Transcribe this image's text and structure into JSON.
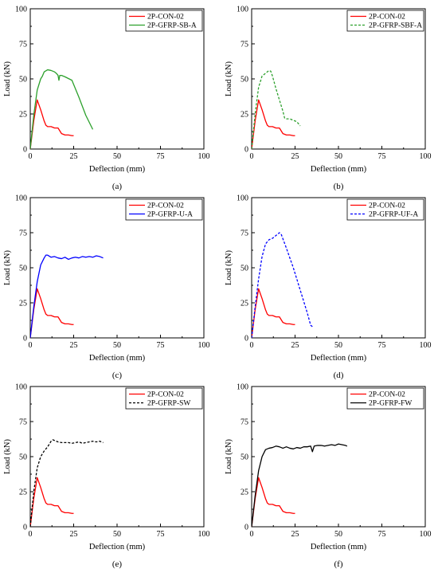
{
  "chart_data": [
    {
      "type": "line",
      "panel_label": "(a)",
      "xlabel": "Deflection (mm)",
      "ylabel": "Load (kN)",
      "xlim": [
        0,
        100
      ],
      "ylim": [
        0,
        100
      ],
      "xticks": [
        "0",
        "25",
        "50",
        "75",
        "100"
      ],
      "yticks": [
        "0",
        "25",
        "50",
        "75",
        "100"
      ],
      "legend_position": "top-right",
      "series": [
        {
          "name": "2P-CON-02",
          "color": "#ff0000",
          "dash": "solid",
          "x": [
            0,
            2,
            4,
            6,
            8,
            9,
            10,
            12,
            14,
            16,
            18,
            20,
            22,
            24,
            25
          ],
          "y": [
            0,
            20,
            35,
            28,
            20,
            17,
            16,
            16,
            15,
            15,
            11,
            10,
            10,
            9.5,
            9.5
          ]
        },
        {
          "name": "2P-GFRP-SB-A",
          "color": "#2ca02c",
          "dash": "solid",
          "x": [
            0,
            2,
            4,
            6,
            7,
            8,
            10,
            12,
            14,
            15,
            16,
            16.5,
            17,
            18,
            20,
            24,
            28,
            32,
            36
          ],
          "y": [
            0,
            24,
            42,
            50,
            52,
            55,
            56.5,
            56,
            55,
            54,
            52.5,
            49,
            52.5,
            52.5,
            51.5,
            49,
            37,
            24,
            14
          ]
        }
      ]
    },
    {
      "type": "line",
      "panel_label": "(b)",
      "xlabel": "Deflection (mm)",
      "ylabel": "Load (kN)",
      "xlim": [
        0,
        100
      ],
      "ylim": [
        0,
        100
      ],
      "xticks": [
        "0",
        "25",
        "50",
        "75",
        "100"
      ],
      "yticks": [
        "0",
        "25",
        "50",
        "75",
        "100"
      ],
      "legend_position": "top-right",
      "series": [
        {
          "name": "2P-CON-02",
          "color": "#ff0000",
          "dash": "solid",
          "x": [
            0,
            2,
            4,
            6,
            8,
            9,
            10,
            12,
            14,
            16,
            18,
            20,
            22,
            24,
            25
          ],
          "y": [
            0,
            20,
            35,
            28,
            20,
            17,
            16,
            16,
            15,
            15,
            11,
            10,
            10,
            9.5,
            9.5
          ]
        },
        {
          "name": "2P-GFRP-SBF-A",
          "color": "#2ca02c",
          "dash": "dashed",
          "x": [
            0,
            2,
            4,
            6,
            8,
            10,
            11,
            12,
            14,
            16,
            18,
            19,
            20,
            22,
            24,
            26,
            28
          ],
          "y": [
            0,
            25,
            44,
            52,
            54,
            56,
            55.5,
            52,
            43,
            35,
            27,
            22,
            21.5,
            21.5,
            20.5,
            19.5,
            16.5
          ]
        }
      ]
    },
    {
      "type": "line",
      "panel_label": "(c)",
      "xlabel": "Deflection (mm)",
      "ylabel": "Load (kN)",
      "xlim": [
        0,
        100
      ],
      "ylim": [
        0,
        100
      ],
      "xticks": [
        "0",
        "25",
        "50",
        "75",
        "100"
      ],
      "yticks": [
        "0",
        "25",
        "50",
        "75",
        "100"
      ],
      "legend_position": "top-right",
      "series": [
        {
          "name": "2P-CON-02",
          "color": "#ff0000",
          "dash": "solid",
          "x": [
            0,
            2,
            4,
            6,
            8,
            9,
            10,
            12,
            14,
            16,
            18,
            20,
            22,
            24,
            25
          ],
          "y": [
            0,
            20,
            35,
            28,
            20,
            17,
            16,
            16,
            15,
            15,
            11,
            10,
            10,
            9.5,
            9.5
          ]
        },
        {
          "name": "2P-GFRP-U-A",
          "color": "#0000ff",
          "dash": "solid",
          "x": [
            0,
            2,
            4,
            6,
            8,
            9,
            10,
            12,
            14,
            16,
            18,
            20,
            22,
            24,
            26,
            28,
            30,
            32,
            34,
            36,
            38,
            40,
            42
          ],
          "y": [
            0,
            22,
            40,
            52,
            57,
            59,
            59,
            57.5,
            58,
            57,
            56.5,
            57.5,
            56,
            57,
            57.5,
            57,
            58,
            57.5,
            58,
            57.5,
            58.5,
            58,
            57
          ]
        }
      ]
    },
    {
      "type": "line",
      "panel_label": "(d)",
      "xlabel": "Deflection (mm)",
      "ylabel": "Load (kN)",
      "xlim": [
        0,
        100
      ],
      "ylim": [
        0,
        100
      ],
      "xticks": [
        "0",
        "25",
        "50",
        "75",
        "100"
      ],
      "yticks": [
        "0",
        "25",
        "50",
        "75",
        "100"
      ],
      "legend_position": "top-right",
      "series": [
        {
          "name": "2P-CON-02",
          "color": "#ff0000",
          "dash": "solid",
          "x": [
            0,
            2,
            4,
            6,
            8,
            9,
            10,
            12,
            14,
            16,
            18,
            20,
            22,
            24,
            25
          ],
          "y": [
            0,
            20,
            35,
            28,
            20,
            17,
            16,
            16,
            15,
            15,
            11,
            10,
            10,
            9.5,
            9.5
          ]
        },
        {
          "name": "2P-GFRP-UF-A",
          "color": "#0000ff",
          "dash": "dashed",
          "x": [
            0,
            2,
            4,
            6,
            8,
            10,
            12,
            14,
            16,
            17,
            20,
            24,
            28,
            32,
            34,
            35
          ],
          "y": [
            0,
            22,
            42,
            58,
            67,
            70,
            71,
            73,
            75,
            74,
            64,
            50,
            34,
            18,
            9,
            8
          ]
        }
      ]
    },
    {
      "type": "line",
      "panel_label": "(e)",
      "xlabel": "Deflection (mm)",
      "ylabel": "Load (kN)",
      "xlim": [
        0,
        100
      ],
      "ylim": [
        0,
        100
      ],
      "xticks": [
        "0",
        "25",
        "50",
        "75",
        "100"
      ],
      "yticks": [
        "0",
        "25",
        "50",
        "75",
        "100"
      ],
      "legend_position": "top-right",
      "series": [
        {
          "name": "2P-CON-02",
          "color": "#ff0000",
          "dash": "solid",
          "x": [
            0,
            2,
            4,
            6,
            8,
            9,
            10,
            12,
            14,
            16,
            18,
            20,
            22,
            24,
            25
          ],
          "y": [
            0,
            20,
            35,
            28,
            20,
            17,
            16,
            16,
            15,
            15,
            11,
            10,
            10,
            9.5,
            9.5
          ]
        },
        {
          "name": "2P-GFRP-SW",
          "color": "#000000",
          "dash": "dashed",
          "x": [
            0,
            2,
            4,
            6,
            8,
            10,
            12,
            13,
            14,
            16,
            18,
            20,
            22,
            24,
            26,
            28,
            30,
            32,
            34,
            36,
            38,
            40,
            42
          ],
          "y": [
            0,
            25,
            42,
            50,
            54,
            57,
            61,
            62,
            61.5,
            60.5,
            60,
            60,
            60,
            59.5,
            60,
            60.5,
            59.5,
            60,
            60.5,
            61,
            60.5,
            61,
            60
          ]
        }
      ]
    },
    {
      "type": "line",
      "panel_label": "(f)",
      "xlabel": "Deflection (mm)",
      "ylabel": "Load (kN)",
      "xlim": [
        0,
        100
      ],
      "ylim": [
        0,
        100
      ],
      "xticks": [
        "0",
        "25",
        "50",
        "75",
        "100"
      ],
      "yticks": [
        "0",
        "25",
        "50",
        "75",
        "100"
      ],
      "legend_position": "top-right",
      "series": [
        {
          "name": "2P-CON-02",
          "color": "#ff0000",
          "dash": "solid",
          "x": [
            0,
            2,
            4,
            6,
            8,
            9,
            10,
            12,
            14,
            16,
            18,
            20,
            22,
            24,
            25
          ],
          "y": [
            0,
            20,
            35,
            28,
            20,
            17,
            16,
            16,
            15,
            15,
            11,
            10,
            10,
            9.5,
            9.5
          ]
        },
        {
          "name": "2P-GFRP-FW",
          "color": "#000000",
          "dash": "solid",
          "x": [
            0,
            2,
            4,
            6,
            8,
            10,
            12,
            14,
            16,
            18,
            20,
            22,
            24,
            26,
            28,
            30,
            32,
            34,
            35,
            36,
            38,
            40,
            42,
            44,
            46,
            48,
            50,
            52,
            54,
            55
          ],
          "y": [
            0,
            22,
            40,
            50,
            55,
            56,
            56.5,
            57.5,
            57,
            56,
            57,
            56,
            55.5,
            56.5,
            56,
            57,
            57,
            57.5,
            53.5,
            57.5,
            58,
            58,
            57.5,
            58,
            58.5,
            58,
            59,
            58.5,
            58,
            57.5
          ]
        }
      ]
    }
  ]
}
